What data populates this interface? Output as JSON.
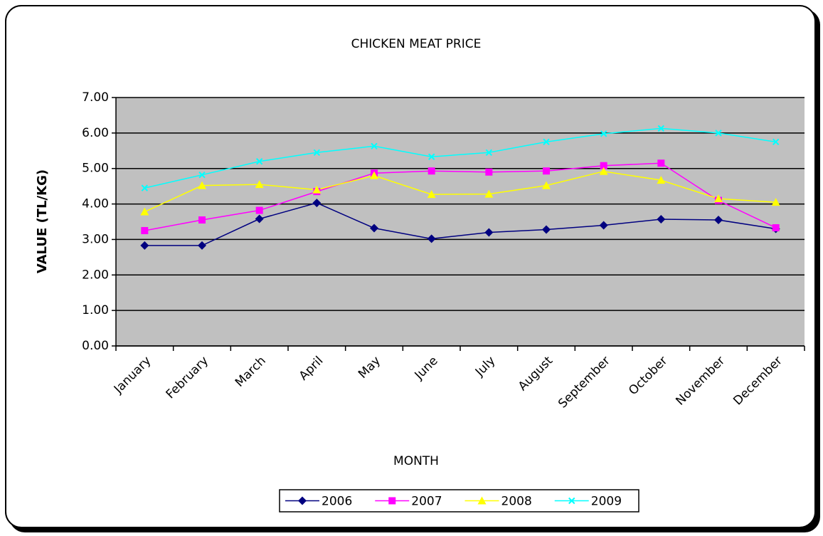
{
  "chart_data": {
    "type": "line",
    "title": "CHICKEN MEAT PRICE",
    "x_label": "MONTH",
    "y_label": "VALUE (TL/KG)",
    "categories": [
      "January",
      "February",
      "March",
      "April",
      "May",
      "June",
      "July",
      "August",
      "September",
      "October",
      "November",
      "December"
    ],
    "series": [
      {
        "name": "2006",
        "color": "#000080",
        "marker": "diamond",
        "values": [
          2.83,
          2.83,
          3.58,
          4.03,
          3.32,
          3.02,
          3.2,
          3.28,
          3.4,
          3.57,
          3.55,
          3.3
        ]
      },
      {
        "name": "2007",
        "color": "#ff00ff",
        "marker": "square",
        "values": [
          3.25,
          3.55,
          3.82,
          4.35,
          4.87,
          4.93,
          4.9,
          4.93,
          5.08,
          5.15,
          4.1,
          3.33
        ]
      },
      {
        "name": "2008",
        "color": "#ffff00",
        "marker": "triangle",
        "values": [
          3.78,
          4.52,
          4.55,
          4.4,
          4.8,
          4.27,
          4.28,
          4.52,
          4.92,
          4.67,
          4.15,
          4.05
        ]
      },
      {
        "name": "2009",
        "color": "#00ffff",
        "marker": "x",
        "values": [
          4.45,
          4.82,
          5.2,
          5.45,
          5.63,
          5.33,
          5.45,
          5.75,
          5.98,
          6.13,
          6.0,
          5.75
        ]
      }
    ],
    "ylim": [
      0,
      7
    ],
    "yticks": [
      {
        "value": 0,
        "label": "0.00"
      },
      {
        "value": 1,
        "label": "1.00"
      },
      {
        "value": 2,
        "label": "2.00"
      },
      {
        "value": 3,
        "label": "3.00"
      },
      {
        "value": 4,
        "label": "4.00"
      },
      {
        "value": 5,
        "label": "5.00"
      },
      {
        "value": 6,
        "label": "6.00"
      },
      {
        "value": 7,
        "label": "7.00"
      }
    ],
    "grid": true,
    "plot_background": "#c0c0c0",
    "legend": "bottom"
  }
}
